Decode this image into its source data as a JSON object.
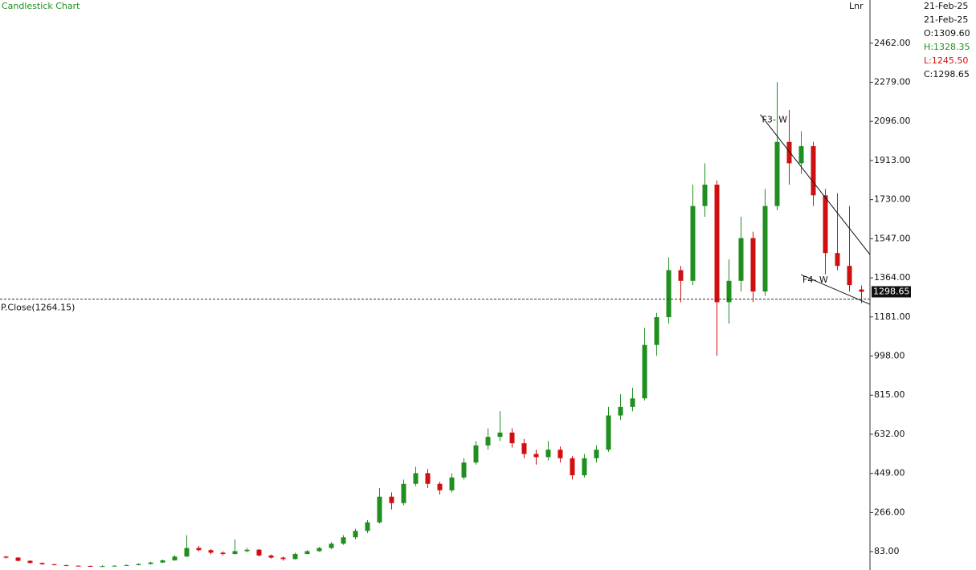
{
  "chart_data": {
    "type": "candlestick",
    "title": "Candlestick Chart",
    "scale_label": "Lnr",
    "up_color": "#1f8f1f",
    "down_color": "#d01010",
    "ylim": [
      -3,
      2664
    ],
    "yticks": [
      {
        "value": 83,
        "label": "83.00"
      },
      {
        "value": 266,
        "label": "266.00"
      },
      {
        "value": 449,
        "label": "449.00"
      },
      {
        "value": 632,
        "label": "632.00"
      },
      {
        "value": 815,
        "label": "815.00"
      },
      {
        "value": 998,
        "label": "998.00"
      },
      {
        "value": 1181,
        "label": "1181.00"
      },
      {
        "value": 1364,
        "label": "1364.00"
      },
      {
        "value": 1547,
        "label": "1547.00"
      },
      {
        "value": 1730,
        "label": "1730.00"
      },
      {
        "value": 1913,
        "label": "1913.00"
      },
      {
        "value": 2096,
        "label": "2096.00"
      },
      {
        "value": 2279,
        "label": "2279.00"
      },
      {
        "value": 2462,
        "label": "2462.00"
      }
    ],
    "open": [
      60,
      55,
      40,
      30,
      24,
      20,
      17,
      16,
      15,
      15,
      17,
      20,
      25,
      32,
      42,
      60,
      100,
      90,
      78,
      72,
      85,
      92,
      65,
      55,
      48,
      72,
      85,
      100,
      120,
      150,
      180,
      220,
      340,
      310,
      400,
      450,
      400,
      370,
      430,
      500,
      580,
      620,
      640,
      590,
      540,
      525,
      560,
      520,
      440,
      520,
      560,
      720,
      760,
      800,
      1050,
      1180,
      1400,
      1350,
      1700,
      1800,
      1250,
      1350,
      1550,
      1300,
      1700,
      2000,
      1900,
      1980,
      1750,
      1480,
      1420,
      1309.6
    ],
    "high": [
      62,
      57,
      42,
      32,
      26,
      22,
      19,
      18,
      19,
      19,
      23,
      28,
      35,
      46,
      66,
      160,
      110,
      95,
      85,
      140,
      100,
      95,
      70,
      60,
      78,
      90,
      105,
      128,
      160,
      190,
      230,
      380,
      360,
      420,
      480,
      470,
      410,
      450,
      520,
      600,
      660,
      740,
      660,
      610,
      560,
      600,
      575,
      530,
      540,
      580,
      760,
      820,
      850,
      1130,
      1200,
      1460,
      1420,
      1800,
      1900,
      1820,
      1450,
      1650,
      1580,
      1780,
      2280,
      2150,
      2050,
      2000,
      1780,
      1760,
      1700,
      1328.35
    ],
    "low": [
      50,
      38,
      28,
      22,
      18,
      15,
      14,
      13,
      13,
      14,
      16,
      19,
      23,
      30,
      40,
      58,
      85,
      70,
      65,
      70,
      80,
      60,
      50,
      40,
      46,
      70,
      82,
      95,
      115,
      140,
      170,
      215,
      280,
      300,
      390,
      380,
      350,
      360,
      420,
      490,
      560,
      600,
      570,
      520,
      490,
      510,
      500,
      420,
      430,
      500,
      550,
      700,
      740,
      790,
      1000,
      1150,
      1250,
      1330,
      1650,
      1000,
      1150,
      1300,
      1250,
      1280,
      1680,
      1800,
      1850,
      1700,
      1380,
      1400,
      1300,
      1245.5
    ],
    "close": [
      55,
      40,
      30,
      24,
      20,
      17,
      16,
      15,
      15,
      17,
      20,
      25,
      32,
      42,
      60,
      100,
      90,
      78,
      72,
      85,
      92,
      65,
      55,
      48,
      72,
      85,
      100,
      120,
      150,
      180,
      220,
      340,
      310,
      400,
      450,
      400,
      370,
      430,
      500,
      580,
      620,
      640,
      590,
      540,
      525,
      560,
      520,
      440,
      520,
      560,
      720,
      760,
      800,
      1050,
      1180,
      1400,
      1350,
      1700,
      1800,
      1250,
      1350,
      1550,
      1300,
      1700,
      2000,
      1900,
      1980,
      1750,
      1480,
      1420,
      1330,
      1298.65
    ],
    "prev_close": 1264.15,
    "prev_close_label": "P.Close(1264.15)",
    "last_price": 1298.65,
    "last_price_label": "1298.65",
    "trendlines": [
      {
        "label": "F3- W",
        "x": [
          62.6,
          71.7
        ],
        "y": [
          2128,
          1473
        ]
      },
      {
        "label": "F4- W",
        "x": [
          65.97,
          71.7
        ],
        "y": [
          1379,
          1240
        ]
      }
    ],
    "info": {
      "date1": "21-Feb-25",
      "date2": "21-Feb-25",
      "open": "O:1309.60",
      "high": "H:1328.35",
      "low": "L:1245.50",
      "close": "C:1298.65"
    }
  }
}
